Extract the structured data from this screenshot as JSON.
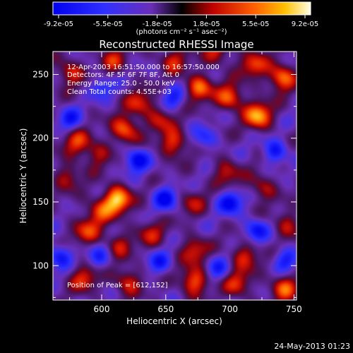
{
  "chart_data": {
    "type": "heatmap",
    "title": "Reconstructed RHESSI Image",
    "xlabel": "Heliocentric X (arcsec)",
    "ylabel": "Heliocentric Y (arcsec)",
    "xlim": [
      562,
      752
    ],
    "ylim": [
      73,
      268
    ],
    "xticks": [
      "600",
      "650",
      "700",
      "750"
    ],
    "yticks": [
      "100",
      "150",
      "200",
      "250"
    ],
    "x_tick_values": [
      600,
      650,
      700,
      750
    ],
    "y_tick_values": [
      100,
      150,
      200,
      250
    ],
    "colorbar": {
      "min": -9.2e-05,
      "max": 9.2e-05,
      "tick_labels": [
        "-9.2e-05",
        "-5.5e-05",
        "-1.8e-05",
        "1.8e-05",
        "5.5e-05",
        "9.2e-05"
      ],
      "units_label": "(photons cm⁻² s⁻¹ asec⁻²)"
    },
    "annotations": [
      "12-Apr-2003 16:51:50.000 to 16:57:50.000",
      "Detectors: 4F 5F 6F 7F 8F, Att 0",
      "Energy Range: 25.0 - 50.0 keV",
      "Clean     Total counts: 4.55E+03",
      "Position of Peak = [612,152]"
    ],
    "peak": {
      "x": 612,
      "y": 152
    },
    "bright_blobs": [
      {
        "x": 612,
        "y": 152,
        "v": 1.0
      },
      {
        "x": 598,
        "y": 143,
        "v": 0.55
      },
      {
        "x": 618,
        "y": 207,
        "v": 0.75
      },
      {
        "x": 580,
        "y": 197,
        "v": 0.55
      },
      {
        "x": 596,
        "y": 188,
        "v": 0.45
      },
      {
        "x": 656,
        "y": 196,
        "v": 0.65
      },
      {
        "x": 646,
        "y": 215,
        "v": 0.45
      },
      {
        "x": 630,
        "y": 228,
        "v": 0.55
      },
      {
        "x": 676,
        "y": 240,
        "v": 0.75
      },
      {
        "x": 700,
        "y": 232,
        "v": 0.7
      },
      {
        "x": 722,
        "y": 218,
        "v": 0.9
      },
      {
        "x": 740,
        "y": 248,
        "v": 0.8
      },
      {
        "x": 718,
        "y": 258,
        "v": 0.6
      },
      {
        "x": 655,
        "y": 262,
        "v": 0.5
      },
      {
        "x": 608,
        "y": 262,
        "v": 0.45
      },
      {
        "x": 575,
        "y": 252,
        "v": 0.55
      },
      {
        "x": 588,
        "y": 127,
        "v": 0.55
      },
      {
        "x": 613,
        "y": 117,
        "v": 0.45
      },
      {
        "x": 638,
        "y": 126,
        "v": 0.45
      },
      {
        "x": 672,
        "y": 112,
        "v": 0.55
      },
      {
        "x": 672,
        "y": 88,
        "v": 0.75
      },
      {
        "x": 712,
        "y": 108,
        "v": 0.55
      },
      {
        "x": 706,
        "y": 86,
        "v": 0.55
      },
      {
        "x": 742,
        "y": 83,
        "v": 0.65
      },
      {
        "x": 745,
        "y": 133,
        "v": 0.45
      },
      {
        "x": 725,
        "y": 162,
        "v": 0.45
      },
      {
        "x": 697,
        "y": 173,
        "v": 0.5
      },
      {
        "x": 670,
        "y": 150,
        "v": 0.4
      },
      {
        "x": 586,
        "y": 90,
        "v": 0.55
      },
      {
        "x": 620,
        "y": 88,
        "v": 0.55
      },
      {
        "x": 573,
        "y": 170,
        "v": 0.45
      },
      {
        "x": 690,
        "y": 268,
        "v": 0.5
      }
    ],
    "dark_blobs": [
      {
        "x": 627,
        "y": 183,
        "v": 0.85
      },
      {
        "x": 650,
        "y": 153,
        "v": 0.8
      },
      {
        "x": 700,
        "y": 150,
        "v": 0.85
      },
      {
        "x": 735,
        "y": 190,
        "v": 0.7
      },
      {
        "x": 575,
        "y": 215,
        "v": 0.6
      },
      {
        "x": 655,
        "y": 232,
        "v": 0.55
      },
      {
        "x": 720,
        "y": 128,
        "v": 0.7
      },
      {
        "x": 598,
        "y": 107,
        "v": 0.5
      },
      {
        "x": 645,
        "y": 103,
        "v": 0.55
      },
      {
        "x": 690,
        "y": 98,
        "v": 0.5
      },
      {
        "x": 743,
        "y": 105,
        "v": 0.6
      },
      {
        "x": 567,
        "y": 108,
        "v": 0.7
      },
      {
        "x": 600,
        "y": 240,
        "v": 0.5
      },
      {
        "x": 680,
        "y": 200,
        "v": 0.5
      }
    ]
  },
  "footer": {
    "date": "24-May-2013 01:23"
  },
  "colors": {
    "background": "#000000",
    "text": "#ffffff"
  }
}
